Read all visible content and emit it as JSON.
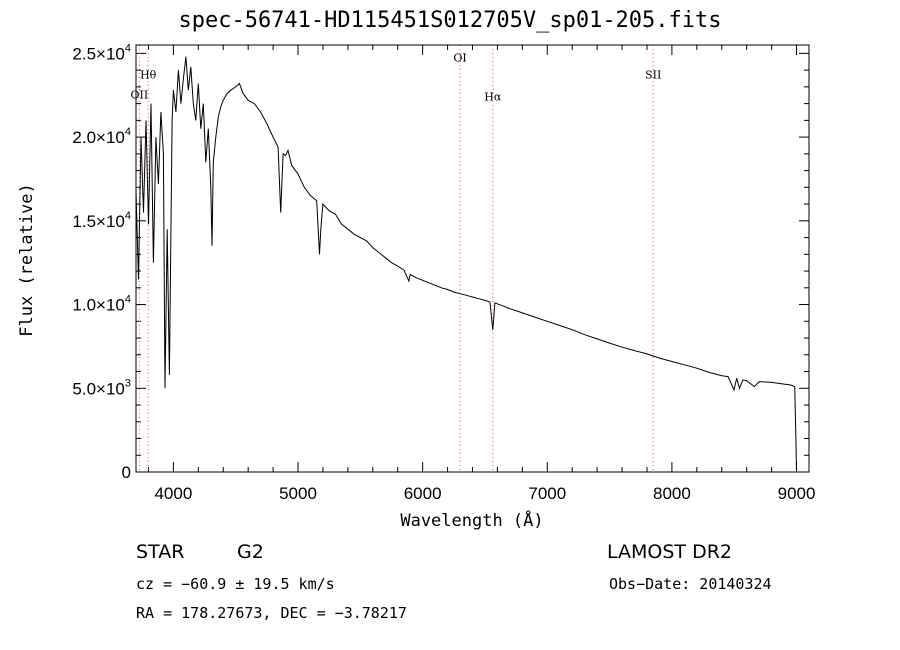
{
  "chart_data": {
    "type": "line",
    "title": "spec-56741-HD115451S012705V_sp01-205.fits",
    "xlabel": "Wavelength (Å)",
    "ylabel": "Flux (relative)",
    "xlim": [
      3700,
      9100
    ],
    "ylim": [
      0,
      25500
    ],
    "x_ticks": [
      4000,
      5000,
      6000,
      7000,
      8000,
      9000
    ],
    "x_tick_labels": [
      "4000",
      "5000",
      "6000",
      "7000",
      "8000",
      "9000"
    ],
    "y_ticks": [
      0,
      5000,
      10000,
      15000,
      20000,
      25000
    ],
    "y_tick_labels": [
      {
        "mant": "0",
        "exp": ""
      },
      {
        "mant": "5.0×10",
        "exp": "3"
      },
      {
        "mant": "1.0×10",
        "exp": "4"
      },
      {
        "mant": "1.5×10",
        "exp": "4"
      },
      {
        "mant": "2.0×10",
        "exp": "4"
      },
      {
        "mant": "2.5×10",
        "exp": "4"
      }
    ],
    "grid": false,
    "lines": [
      {
        "label": "Hθ",
        "x": 3798,
        "label_flux": 23500
      },
      {
        "label": "OII",
        "x": 3727,
        "label_flux": 22300
      },
      {
        "label": "OI",
        "x": 6300,
        "label_flux": 24500
      },
      {
        "label": "Hα",
        "x": 6563,
        "label_flux": 22200
      },
      {
        "label": "SII",
        "x": 7850,
        "label_flux": 23500
      }
    ],
    "series": [
      {
        "x": [
          3700,
          3720,
          3740,
          3760,
          3780,
          3800,
          3820,
          3840,
          3860,
          3880,
          3900,
          3920,
          3933,
          3950,
          3968,
          3990,
          4000,
          4020,
          4040,
          4060,
          4080,
          4100,
          4120,
          4140,
          4160,
          4180,
          4200,
          4220,
          4240,
          4260,
          4280,
          4300,
          4310,
          4320,
          4340,
          4360,
          4380,
          4400,
          4430,
          4460,
          4500,
          4530,
          4560,
          4600,
          4650,
          4700,
          4750,
          4800,
          4840,
          4861,
          4880,
          4900,
          4920,
          4950,
          5000,
          5050,
          5100,
          5150,
          5172,
          5183,
          5200,
          5250,
          5300,
          5350,
          5400,
          5450,
          5500,
          5550,
          5600,
          5650,
          5700,
          5750,
          5800,
          5850,
          5890,
          5900,
          5950,
          6000,
          6050,
          6100,
          6150,
          6200,
          6250,
          6300,
          6350,
          6400,
          6450,
          6500,
          6540,
          6563,
          6580,
          6650,
          6700,
          6800,
          6900,
          7000,
          7100,
          7200,
          7300,
          7400,
          7500,
          7600,
          7700,
          7800,
          7900,
          8000,
          8100,
          8200,
          8300,
          8400,
          8450,
          8498,
          8520,
          8542,
          8570,
          8600,
          8662,
          8700,
          8800,
          8900,
          8950,
          8985,
          8995,
          9000
        ],
        "y": [
          16800,
          11500,
          20000,
          15500,
          21000,
          14800,
          22000,
          12500,
          20000,
          17200,
          21500,
          19000,
          5000,
          14500,
          5800,
          21000,
          22800,
          21500,
          24000,
          22000,
          23500,
          24800,
          22800,
          24200,
          22000,
          21000,
          23200,
          20500,
          22000,
          18500,
          20500,
          17000,
          13500,
          18500,
          20000,
          21200,
          21800,
          22200,
          22600,
          22800,
          23000,
          23200,
          22600,
          22200,
          22000,
          21500,
          20800,
          20000,
          19400,
          15500,
          19000,
          18900,
          19200,
          18300,
          17800,
          17000,
          16500,
          16200,
          13000,
          14500,
          16000,
          15600,
          15400,
          14800,
          14500,
          14200,
          14000,
          13800,
          13400,
          13100,
          12800,
          12500,
          12300,
          12050,
          11400,
          11800,
          11600,
          11450,
          11300,
          11150,
          11000,
          10900,
          10750,
          10650,
          10550,
          10450,
          10350,
          10250,
          10150,
          8500,
          10100,
          9900,
          9750,
          9500,
          9250,
          9000,
          8750,
          8500,
          8200,
          7950,
          7700,
          7450,
          7250,
          7050,
          6800,
          6600,
          6400,
          6200,
          5950,
          5750,
          5700,
          4900,
          5600,
          5000,
          5500,
          5450,
          5100,
          5400,
          5350,
          5250,
          5200,
          5100,
          2000,
          0
        ]
      }
    ]
  },
  "footer": {
    "obj_type": "STAR",
    "subclass": "G2",
    "survey": "LAMOST DR2",
    "cz_line": "cz = −60.9 ± 19.5 km/s",
    "obs_date": "Obs−Date: 20140324",
    "coords": "RA = 178.27673, DEC =  −3.78217"
  }
}
